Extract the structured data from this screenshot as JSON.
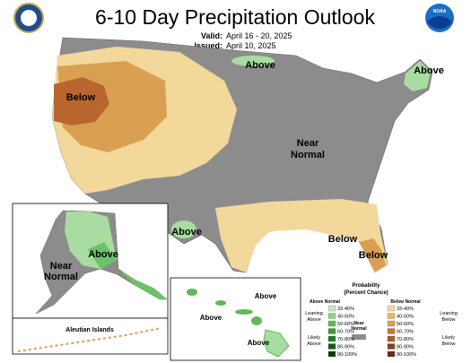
{
  "header": {
    "title": "6-10 Day Precipitation Outlook",
    "valid_label": "Valid:",
    "valid": "April 16 - 20, 2025",
    "issued_label": "Issued:",
    "issued": "April 10, 2025",
    "noaa_logo": "NOAA"
  },
  "conus_labels": {
    "above_north": "Above",
    "above_maine": "Above",
    "below_west": "Below",
    "near_normal": [
      "Near",
      "Normal"
    ],
    "above_texas": "Above",
    "below_southeast": "Below",
    "below_florida": "Below"
  },
  "alaska": {
    "above": "Above",
    "near_normal": [
      "Near",
      "Normal"
    ],
    "aleutian": "Aleutian Islands"
  },
  "hawaii": [
    "Above",
    "Above",
    "Above"
  ],
  "legend": {
    "title": [
      "Probability",
      "(Percent Chance)"
    ],
    "above_header": "Above Normal",
    "below_header": "Below Normal",
    "near": [
      "Near",
      "Normal"
    ],
    "leaning_above": [
      "Leaning",
      "Above"
    ],
    "likely_above": [
      "Likely",
      "Above"
    ],
    "leaning_below": [
      "Leaning",
      "Below"
    ],
    "likely_below": [
      "Likely",
      "Below"
    ],
    "above_ranges": [
      "33-40%",
      "40-50%",
      "50-60%",
      "60-70%",
      "70-80%",
      "80-90%",
      "90-100%"
    ],
    "below_ranges": [
      "33-40%",
      "40-50%",
      "50-60%",
      "60-70%",
      "70-80%",
      "80-90%",
      "90-100%"
    ]
  }
}
